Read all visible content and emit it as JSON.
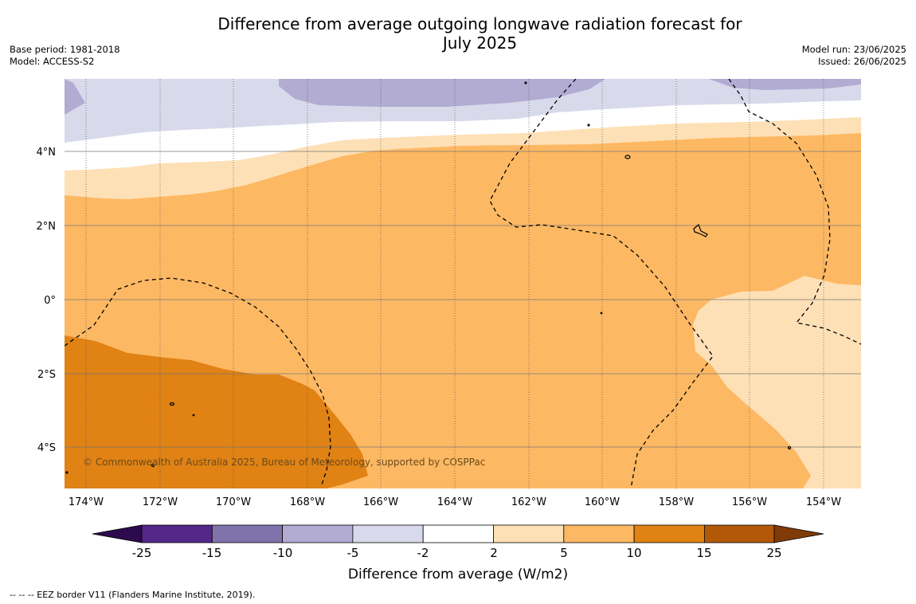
{
  "title": {
    "line1": "Difference from average outgoing longwave radiation forecast for",
    "line2": "July 2025"
  },
  "meta_left": {
    "base_period": "Base period: 1981-2018",
    "model": "Model: ACCESS-S2"
  },
  "meta_right": {
    "model_run": "Model run: 23/06/2025",
    "issued": "Issued: 26/06/2025"
  },
  "map": {
    "copyright": "© Commonwealth of Australia 2025, Bureau of Meteorology, supported by COSPPac",
    "lon_ticks": [
      "174°W",
      "172°W",
      "170°W",
      "168°W",
      "166°W",
      "164°W",
      "162°W",
      "160°W",
      "158°W",
      "156°W",
      "154°W"
    ],
    "lat_ticks": [
      "4°N",
      "2°N",
      "0°",
      "2°S",
      "4°S"
    ]
  },
  "colorbar": {
    "label": "Difference from average (W/m2)",
    "ticks": [
      "-25",
      "-15",
      "-10",
      "-5",
      "-2",
      "2",
      "5",
      "10",
      "15",
      "25"
    ],
    "colors": {
      "extend_low": "#2d0a4e",
      "neg_25_15": "#542788",
      "neg_15_10": "#8073ac",
      "neg_10_5": "#b2abd2",
      "neg_5_2": "#d8daeb",
      "neg_2_2": "#ffffff",
      "pos_2_5": "#fee0b6",
      "pos_5_10": "#fdb863",
      "pos_10_15": "#e08214",
      "pos_15_25": "#b35806",
      "extend_high": "#7f3b08"
    }
  },
  "footnote": "--  --  -- EEZ border V11 (Flanders Marine Institute, 2019)."
}
